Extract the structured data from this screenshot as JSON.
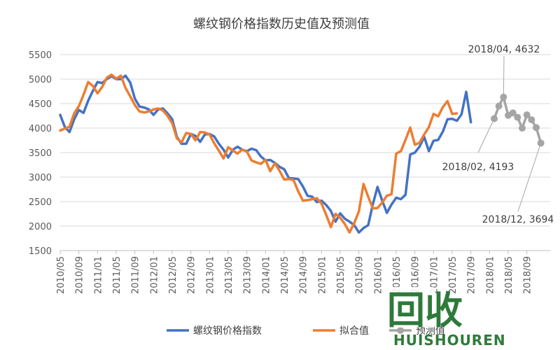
{
  "chart_data": {
    "type": "line",
    "title": "螺纹钢价格指数历史值及预测值",
    "ylim": [
      1500,
      5500
    ],
    "yticks": [
      1500,
      2000,
      2500,
      3000,
      3500,
      4000,
      4500,
      5000,
      5500
    ],
    "grid": true,
    "legend_position": "bottom",
    "xtick_labels": [
      "2010/05",
      "2010/09",
      "2011/01",
      "2011/05",
      "2011/09",
      "2012/01",
      "2012/05",
      "2012/09",
      "2013/01",
      "2013/05",
      "2013/09",
      "2014/01",
      "2014/05",
      "2014/09",
      "2015/01",
      "2015/05",
      "2015/09",
      "2016/01",
      "2016/05",
      "2016/09",
      "2017/01",
      "2017/05",
      "2017/09",
      "2018/01",
      "2018/05",
      "2018/09"
    ],
    "series": [
      {
        "name": "螺纹钢价格指数",
        "color": "#4472C4",
        "start": "2010/05",
        "values": [
          4270,
          4020,
          3920,
          4180,
          4370,
          4310,
          4560,
          4760,
          4940,
          4920,
          5000,
          5060,
          5000,
          5000,
          5070,
          4930,
          4600,
          4440,
          4420,
          4380,
          4270,
          4380,
          4400,
          4300,
          4180,
          3820,
          3680,
          3680,
          3880,
          3840,
          3720,
          3870,
          3880,
          3830,
          3680,
          3560,
          3400,
          3560,
          3620,
          3560,
          3530,
          3580,
          3550,
          3420,
          3340,
          3350,
          3290,
          3210,
          3160,
          2980,
          2970,
          2960,
          2810,
          2620,
          2600,
          2490,
          2520,
          2430,
          2310,
          2090,
          2260,
          2150,
          2090,
          2020,
          1870,
          1960,
          2020,
          2450,
          2800,
          2520,
          2270,
          2440,
          2580,
          2550,
          2640,
          3460,
          3500,
          3620,
          3820,
          3530,
          3740,
          3760,
          3930,
          4180,
          4190,
          4150,
          4280,
          4740,
          4120
        ]
      },
      {
        "name": "拟合值",
        "color": "#ED7D31",
        "start": "2010/05",
        "values": [
          3950,
          3990,
          4030,
          4300,
          4450,
          4680,
          4940,
          4860,
          4710,
          4840,
          5030,
          5090,
          5010,
          5070,
          4820,
          4650,
          4470,
          4340,
          4320,
          4340,
          4380,
          4400,
          4360,
          4250,
          4100,
          3790,
          3710,
          3900,
          3880,
          3750,
          3920,
          3910,
          3870,
          3690,
          3540,
          3380,
          3610,
          3540,
          3480,
          3560,
          3520,
          3340,
          3300,
          3270,
          3350,
          3120,
          3280,
          3130,
          2950,
          2960,
          2940,
          2710,
          2520,
          2530,
          2550,
          2570,
          2460,
          2230,
          1980,
          2250,
          2170,
          2040,
          1870,
          2060,
          2300,
          2860,
          2600,
          2360,
          2370,
          2480,
          2620,
          2650,
          3480,
          3530,
          3760,
          4010,
          3660,
          3700,
          3870,
          4020,
          4290,
          4240,
          4430,
          4550,
          4290,
          4300
        ]
      },
      {
        "name": "预测值",
        "color": "#A5A5A5",
        "start": "2018/02",
        "values": [
          4193,
          4450,
          4632,
          4260,
          4310,
          4220,
          4000,
          4270,
          4170,
          4010,
          3694
        ]
      }
    ],
    "annotations": [
      {
        "text": "2018/04, 4632",
        "date": "2018/04",
        "value": 4632
      },
      {
        "text": "2018/02, 4193",
        "date": "2018/02",
        "value": 4193
      },
      {
        "text": "2018/12, 3694",
        "date": "2018/12",
        "value": 3694
      }
    ]
  },
  "watermark": {
    "cn_text": "回收",
    "en_text": "HUISHOUREN"
  }
}
